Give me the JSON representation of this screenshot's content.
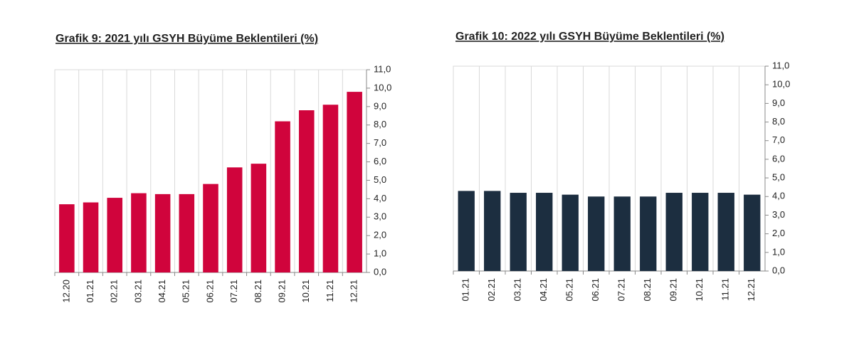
{
  "chart_data": [
    {
      "type": "bar",
      "title": "Grafik 9: 2021 yılı GSYH Büyüme Beklentileri (%)",
      "categories": [
        "12.20",
        "01.21",
        "02.21",
        "03.21",
        "04.21",
        "05.21",
        "06.21",
        "07.21",
        "08.21",
        "09.21",
        "10.21",
        "11.21",
        "12.21"
      ],
      "values": [
        3.7,
        3.8,
        4.05,
        4.3,
        4.25,
        4.25,
        4.8,
        5.7,
        5.9,
        8.2,
        8.8,
        9.1,
        9.8
      ],
      "color": "#d0043c",
      "ylim": [
        0,
        11
      ],
      "yticks": [
        {
          "value": 0,
          "label": "0,0"
        },
        {
          "value": 1,
          "label": "1,0"
        },
        {
          "value": 2,
          "label": "2,0"
        },
        {
          "value": 3,
          "label": "3,0"
        },
        {
          "value": 4,
          "label": "4,0"
        },
        {
          "value": 5,
          "label": "5,0"
        },
        {
          "value": 6,
          "label": "6,0"
        },
        {
          "value": 7,
          "label": "7,0"
        },
        {
          "value": 8,
          "label": "8,0"
        },
        {
          "value": 9,
          "label": "9,0"
        },
        {
          "value": 10,
          "label": "10,0"
        },
        {
          "value": 11,
          "label": "11,0"
        }
      ],
      "grid": true
    },
    {
      "type": "bar",
      "title": "Grafik 10: 2022 yılı GSYH Büyüme Beklentileri (%)",
      "categories": [
        "01.21",
        "02.21",
        "03.21",
        "04.21",
        "05.21",
        "06.21",
        "07.21",
        "08.21",
        "09.21",
        "10.21",
        "11.21",
        "12.21"
      ],
      "values": [
        4.3,
        4.3,
        4.2,
        4.2,
        4.1,
        4.0,
        4.0,
        4.0,
        4.2,
        4.2,
        4.2,
        4.1
      ],
      "color": "#1c2e40",
      "ylim": [
        0,
        11
      ],
      "yticks": [
        {
          "value": 0,
          "label": "0,0"
        },
        {
          "value": 1,
          "label": "1,0"
        },
        {
          "value": 2,
          "label": "2,0"
        },
        {
          "value": 3,
          "label": "3,0"
        },
        {
          "value": 4,
          "label": "4,0"
        },
        {
          "value": 5,
          "label": "5,0"
        },
        {
          "value": 6,
          "label": "6,0"
        },
        {
          "value": 7,
          "label": "7,0"
        },
        {
          "value": 8,
          "label": "8,0"
        },
        {
          "value": 9,
          "label": "9,0"
        },
        {
          "value": 10,
          "label": "10,0"
        },
        {
          "value": 11,
          "label": "11,0"
        }
      ],
      "grid": true
    }
  ]
}
